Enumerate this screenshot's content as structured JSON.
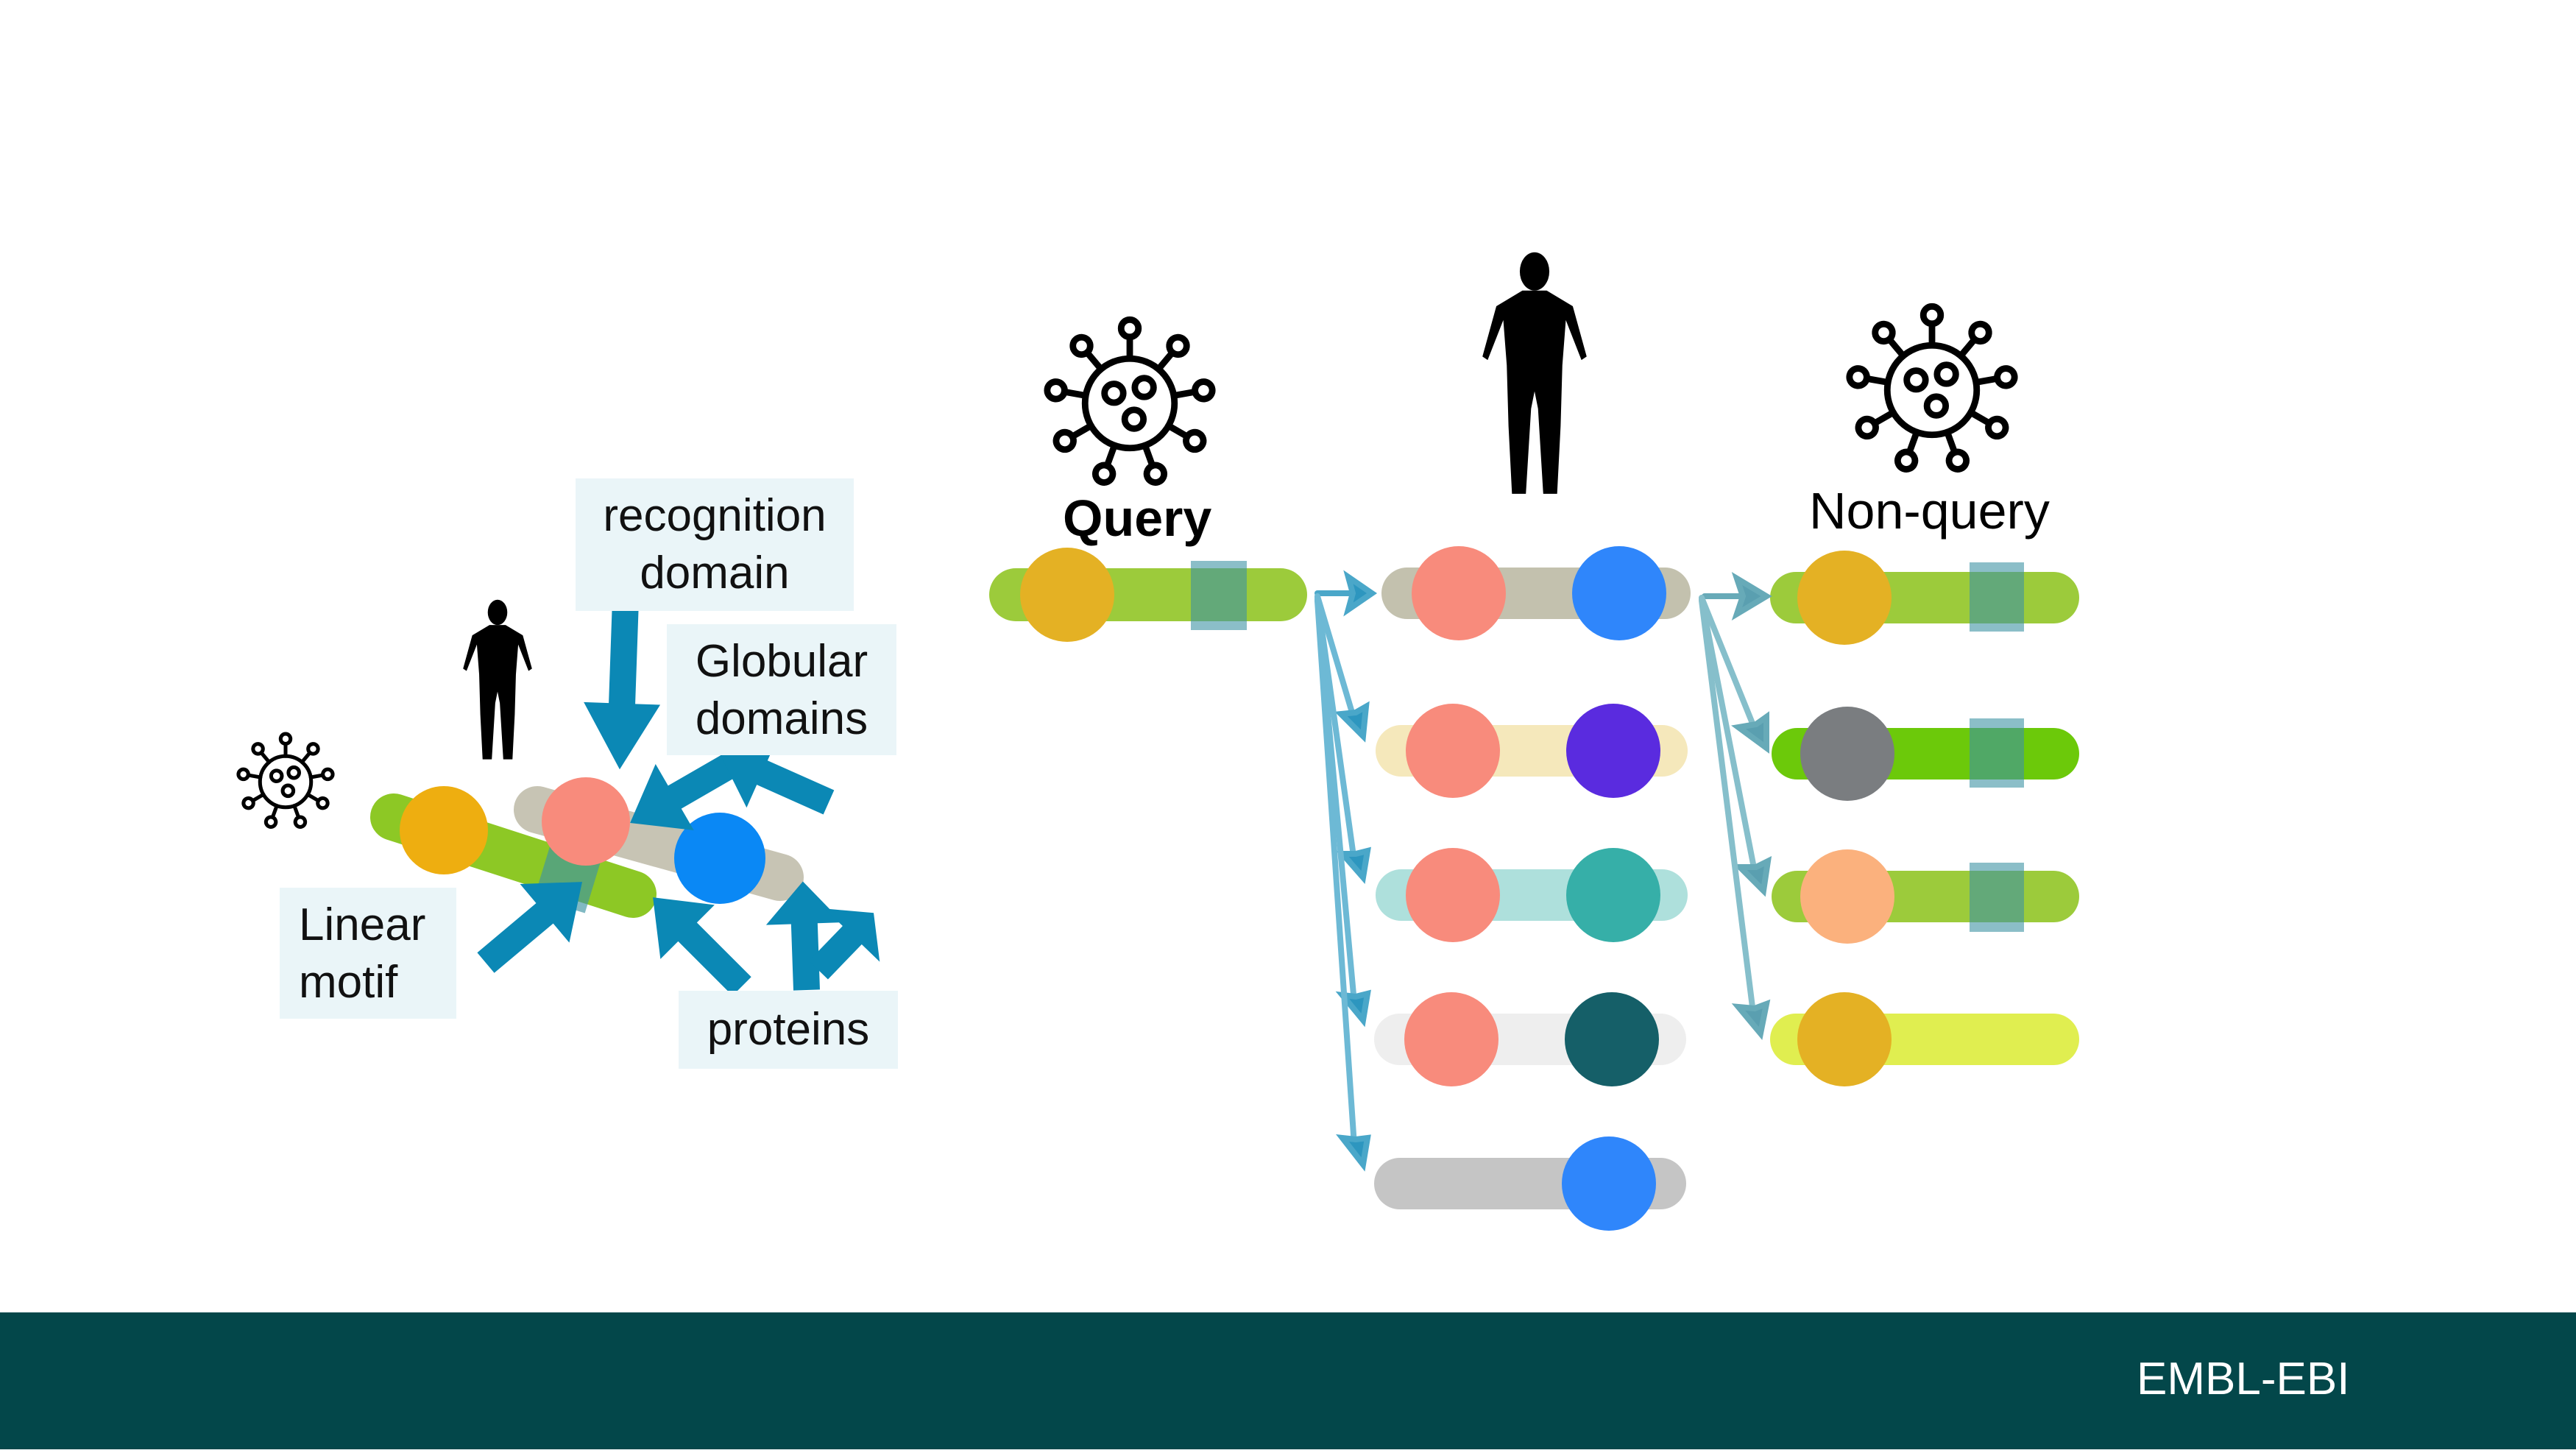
{
  "labels": {
    "recognition": [
      "recognition",
      "domain"
    ],
    "globular": [
      "Globular",
      "domains"
    ],
    "linear": [
      "Linear",
      "motif"
    ],
    "proteins": "proteins"
  },
  "headings": {
    "query": "Query",
    "non_query": "Non-query"
  },
  "footer": {
    "brand": "EMBL-EBI"
  },
  "icons": [
    "virus-icon",
    "human-figure-icon",
    "arrow-icon",
    "ebi-logo-icon"
  ],
  "colors": {
    "footer_bg": "#03474a",
    "arrow": "#0b88b5",
    "label_bg": "#eaf5f8",
    "green_bar": "#9ccb3b",
    "orange_domain": "#e4b124",
    "salmon_domain": "#f88b7c",
    "blue_domain": "#2f86fb",
    "purple_domain": "#5a2bdf",
    "teal_domain": "#36afa8",
    "dark_teal_domain": "#155f68",
    "grey_domain": "#7a7d80",
    "peach_domain": "#fbb17d"
  }
}
